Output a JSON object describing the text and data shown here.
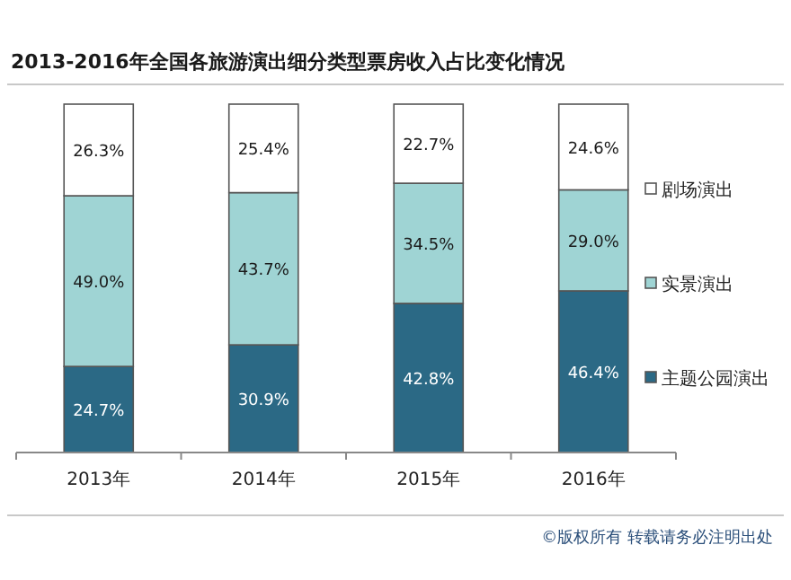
{
  "chart_data": {
    "type": "bar",
    "title": "2013-2016年全国各旅游演出细分类型票房收入占比变化情况",
    "categories": [
      "2013年",
      "2014年",
      "2015年",
      "2016年"
    ],
    "stacked": true,
    "legend": "right",
    "series": [
      {
        "name": "主题公园演出",
        "color": "#2b6985",
        "values": [
          24.7,
          30.9,
          42.8,
          46.4
        ],
        "value_labels": [
          "24.7%",
          "30.9%",
          "42.8%",
          "46.4%"
        ]
      },
      {
        "name": "实景演出",
        "color": "#9fd4d4",
        "values": [
          49.0,
          43.7,
          34.5,
          29.0
        ],
        "value_labels": [
          "49.0%",
          "43.7%",
          "34.5%",
          "29.0%"
        ]
      },
      {
        "name": "剧场演出",
        "color": "#ffffff",
        "values": [
          26.3,
          25.4,
          22.7,
          24.6
        ],
        "value_labels": [
          "26.3%",
          "25.4%",
          "22.7%",
          "24.6%"
        ]
      }
    ],
    "annotations": [
      "©版权所有   转载请务必注明出处"
    ]
  }
}
